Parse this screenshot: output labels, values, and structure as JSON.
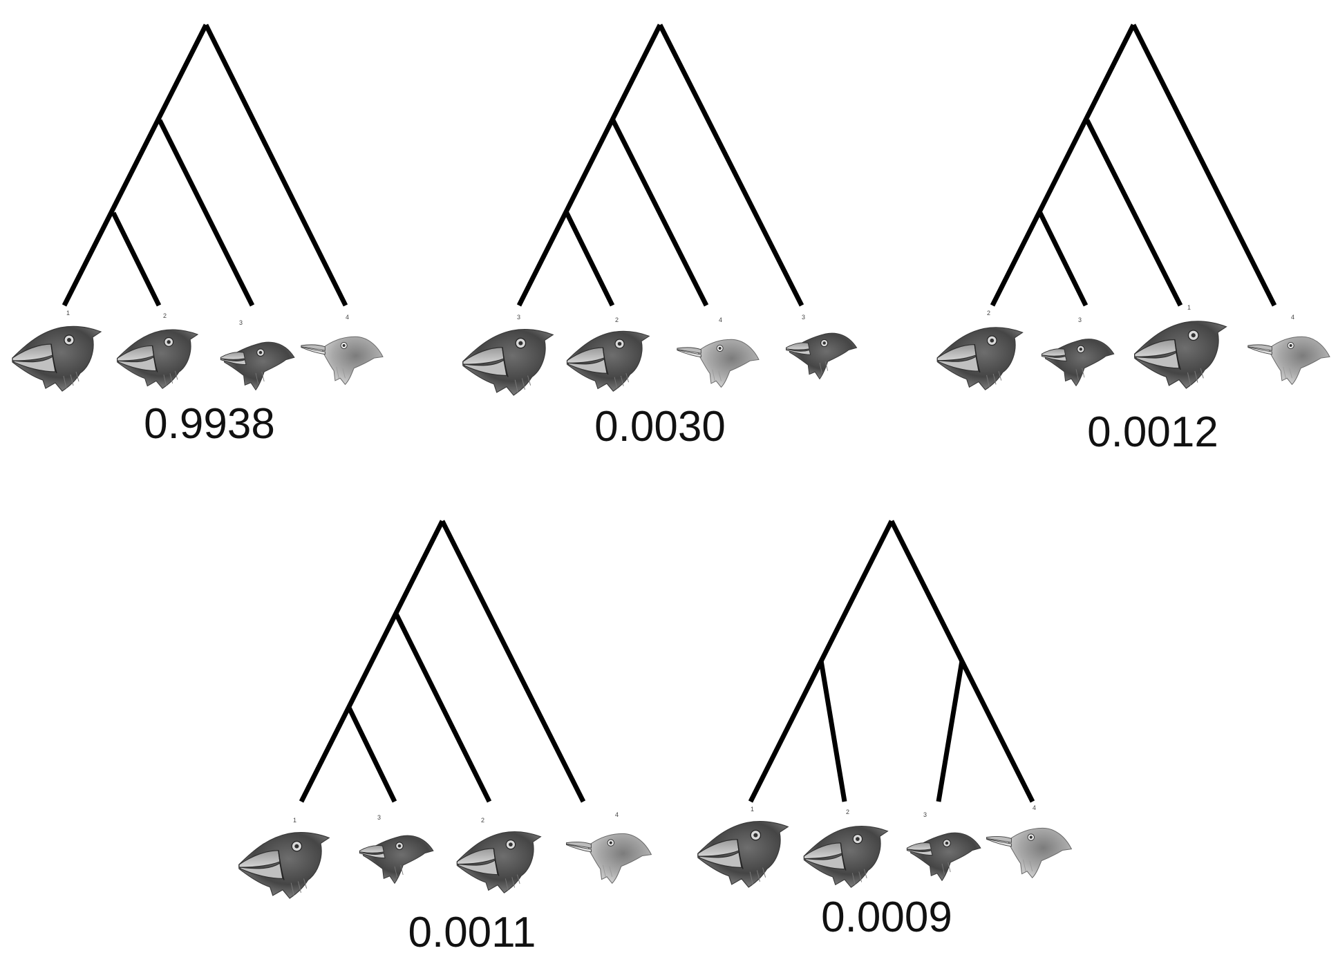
{
  "figure": {
    "description_free": true,
    "line_color": "#000000",
    "label_color": "#111111",
    "trees": [
      {
        "id": "tree-1",
        "probability": "0.9938",
        "topology": "(((a,b),c),d)",
        "leaf_tags": [
          "1",
          "2",
          "3",
          "4"
        ],
        "heads": [
          "large",
          "large",
          "small",
          "warbler"
        ]
      },
      {
        "id": "tree-2",
        "probability": "0.0030",
        "topology": "(((a,b),c),d)",
        "leaf_tags": [
          "3",
          "2",
          "4",
          "3"
        ],
        "heads": [
          "large",
          "large",
          "warbler",
          "small"
        ]
      },
      {
        "id": "tree-3",
        "probability": "0.0012",
        "topology": "(((a,b),c),d)",
        "leaf_tags": [
          "2",
          "3",
          "1",
          "4"
        ],
        "heads": [
          "large",
          "small",
          "large",
          "warbler"
        ]
      },
      {
        "id": "tree-4",
        "probability": "0.0011",
        "topology": "(((a,b),c),d)",
        "leaf_tags": [
          "1",
          "3",
          "2",
          "4"
        ],
        "heads": [
          "large",
          "small",
          "large",
          "warbler"
        ]
      },
      {
        "id": "tree-5",
        "probability": "0.0009",
        "topology": "((a,b),(c,d))",
        "leaf_tags": [
          "1",
          "2",
          "3",
          "4"
        ],
        "heads": [
          "large",
          "large",
          "small",
          "warbler"
        ]
      }
    ]
  }
}
